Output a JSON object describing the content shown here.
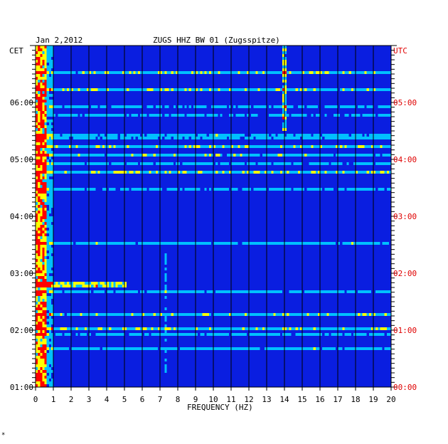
{
  "header": {
    "date": "Jan 2,2012",
    "station": "ZUGS HHZ BW 01 (Zugsspitze)"
  },
  "left_axis": {
    "timezone": "CET"
  },
  "right_axis": {
    "timezone": "UTC"
  },
  "xaxis": {
    "label": "FREQUENCY (HZ)"
  },
  "footer_mark": "*",
  "colors": {
    "background": "#0a1ee0",
    "grid": "#000000",
    "utc_text": "#e00000",
    "scale": [
      "#0000a0",
      "#1030ff",
      "#00c0ff",
      "#ffff00",
      "#ff0000"
    ]
  },
  "chart_data": {
    "type": "heatmap",
    "title": "ZUGS HHZ BW 01 (Zugsspitze)",
    "subtitle": "Jan 2,2012",
    "xlabel": "FREQUENCY (HZ)",
    "xlim": [
      0,
      20
    ],
    "x_ticks": [
      "0",
      "1",
      "2",
      "3",
      "4",
      "5",
      "6",
      "7",
      "8",
      "9",
      "10",
      "11",
      "12",
      "13",
      "14",
      "15",
      "16",
      "17",
      "18",
      "19",
      "20"
    ],
    "ylim_cet": [
      "01:00",
      "07:00"
    ],
    "y_ticks_cet": [
      "01:00",
      "02:00",
      "03:00",
      "04:00",
      "05:00",
      "06:00"
    ],
    "y_ticks_utc": [
      "00:00",
      "01:00",
      "02:00",
      "03:00",
      "04:00",
      "05:00"
    ],
    "grid": true,
    "features": [
      {
        "freq_hz": [
          0,
          0.6
        ],
        "note": "strong low-frequency energy entire record"
      },
      {
        "freq_hz": [
          13.8,
          14.0
        ],
        "time_cet": [
          "05:30",
          "07:00"
        ],
        "level": "high"
      },
      {
        "freq_hz": [
          0,
          5
        ],
        "time_cet": "02:48",
        "level": "high"
      },
      {
        "freq_hz": [
          7.2,
          7.3
        ],
        "time_cet": [
          "01:15",
          "03:20"
        ],
        "level": "medium"
      }
    ]
  }
}
